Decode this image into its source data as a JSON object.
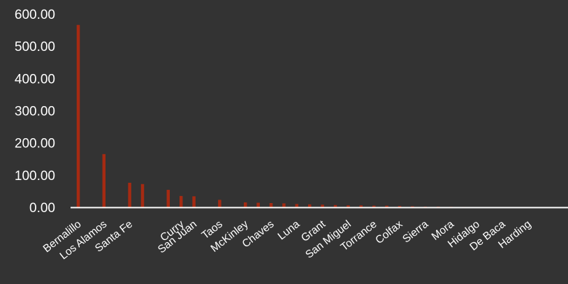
{
  "chart_data": {
    "type": "bar",
    "title": "",
    "xlabel": "",
    "ylabel": "",
    "ylim": [
      0,
      600
    ],
    "yticks": [
      "0.00",
      "100.00",
      "200.00",
      "300.00",
      "400.00",
      "500.00",
      "600.00"
    ],
    "grid": false,
    "legend": "none",
    "bar_color": "#a52a12",
    "axis_color": "#ffffff",
    "background": "#333333",
    "categories": [
      "Bernalillo",
      "",
      "Los Alamos",
      "",
      "Santa Fe",
      "",
      "",
      "",
      "Curry",
      "San Juan",
      "",
      "Taos",
      "",
      "McKinley",
      "",
      "Chaves",
      "",
      "Luna",
      "",
      "Grant",
      "",
      "San Miguel",
      "",
      "Torrance",
      "",
      "Colfax",
      "",
      "Sierra",
      "",
      "Mora",
      "",
      "Hidalgo",
      "",
      "De Baca",
      "",
      "Harding"
    ],
    "values": [
      566,
      0,
      165,
      0,
      76,
      72,
      0,
      54,
      35,
      34,
      0,
      23,
      0,
      15,
      14,
      13,
      12,
      10,
      9,
      8,
      7,
      6,
      6,
      5,
      5,
      4,
      3,
      2,
      2,
      1.5,
      1.2,
      1,
      0.8,
      0.6,
      0.4,
      0.2
    ]
  }
}
